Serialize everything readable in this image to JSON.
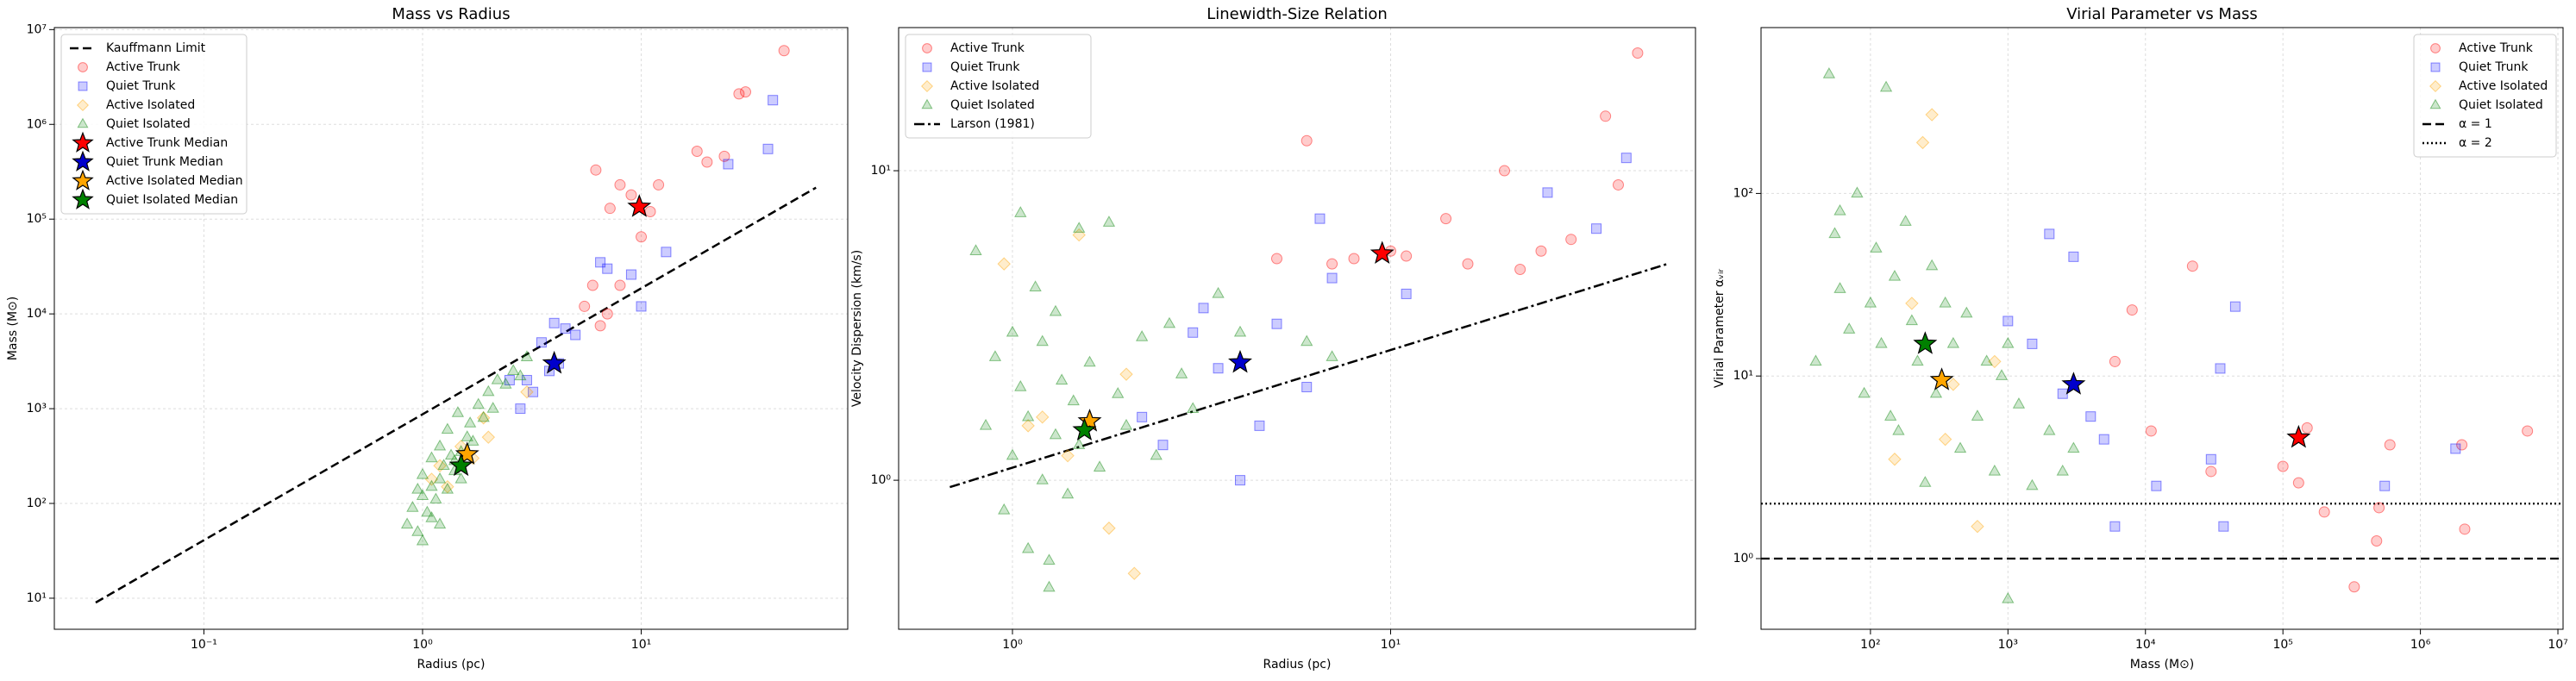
{
  "chart_data": [
    {
      "type": "scatter",
      "title": "Mass vs Radius",
      "xlabel": "Radius (pc)",
      "ylabel": "Mass (M⊙)",
      "log_x": true,
      "log_y": true,
      "grid": true,
      "legend": "upper left",
      "xlim": [
        0.0207,
        88
      ],
      "ylim": [
        4.7,
        10500000
      ],
      "xticks": [
        {
          "value": 0.1,
          "label": "10⁻¹"
        },
        {
          "value": 1,
          "label": "10⁰"
        },
        {
          "value": 10,
          "label": "10¹"
        }
      ],
      "yticks": [
        {
          "value": 10,
          "label": "10¹"
        },
        {
          "value": 100,
          "label": "10²"
        },
        {
          "value": 1000,
          "label": "10³"
        },
        {
          "value": 10000,
          "label": "10⁴"
        },
        {
          "value": 100000,
          "label": "10⁵"
        },
        {
          "value": 1000000,
          "label": "10⁶"
        },
        {
          "value": 10000000,
          "label": "10⁷"
        }
      ],
      "lines": [
        {
          "name": "Kauffmann Limit",
          "style": "dashed",
          "color": "#000000",
          "x": [
            0.032,
            63
          ],
          "y": [
            9,
            215000
          ]
        }
      ],
      "series": [
        {
          "name": "Active Trunk",
          "marker": "circle",
          "color": "#ff0000",
          "x": [
            6.2,
            7.2,
            8,
            9,
            11,
            12,
            18,
            20,
            24,
            28,
            30,
            45,
            6,
            7,
            6.5,
            5.5,
            8,
            10
          ],
          "y": [
            330000,
            130000,
            230000,
            180000,
            120000,
            230000,
            520000,
            400000,
            460000,
            2100000,
            2200000,
            6000000,
            20000,
            10000,
            7500,
            12000,
            20000,
            65000
          ]
        },
        {
          "name": "Quiet Trunk",
          "marker": "square",
          "color": "#0000ff",
          "x": [
            3,
            3.5,
            4,
            4.5,
            5,
            6.5,
            7,
            9,
            10,
            13,
            25,
            38,
            40,
            2.5,
            3.2,
            2.8,
            4.2,
            3.8
          ],
          "y": [
            2000,
            5000,
            8000,
            7000,
            6000,
            35000,
            30000,
            26000,
            12000,
            45000,
            380000,
            550000,
            1800000,
            2000,
            1500,
            1000,
            3000,
            2500
          ]
        },
        {
          "name": "Active Isolated",
          "marker": "diamond",
          "color": "#ffa500",
          "x": [
            1.5,
            1.7,
            1.2,
            2,
            1.9,
            1.3,
            3,
            1.1
          ],
          "y": [
            400,
            300,
            250,
            500,
            800,
            150,
            1500,
            180
          ]
        },
        {
          "name": "Quiet Isolated",
          "marker": "triangle",
          "color": "#008000",
          "x": [
            0.85,
            0.9,
            0.95,
            1,
            1,
            1.05,
            1.1,
            1.1,
            1.15,
            1.2,
            1.2,
            1.25,
            1.3,
            1.3,
            1.35,
            1.4,
            1.45,
            1.5,
            1.5,
            1.6,
            1.65,
            1.7,
            1.8,
            1.9,
            2,
            2.1,
            2.2,
            2.4,
            2.6,
            2.8,
            3,
            1,
            1.1,
            0.95,
            1.2,
            1.4
          ],
          "y": [
            60,
            90,
            50,
            120,
            200,
            80,
            150,
            300,
            110,
            180,
            400,
            250,
            140,
            600,
            320,
            220,
            900,
            350,
            180,
            500,
            700,
            450,
            1100,
            800,
            1500,
            1000,
            2000,
            1800,
            2500,
            2200,
            3500,
            40,
            70,
            140,
            60,
            280
          ]
        },
        {
          "name": "Active Trunk Median",
          "marker": "star",
          "color": "#ff0000",
          "x": [
            9.8
          ],
          "y": [
            135000
          ]
        },
        {
          "name": "Quiet Trunk Median",
          "marker": "star",
          "color": "#0000cc",
          "x": [
            4
          ],
          "y": [
            3000
          ]
        },
        {
          "name": "Active Isolated Median",
          "marker": "star",
          "color": "#ffa500",
          "x": [
            1.6
          ],
          "y": [
            330
          ]
        },
        {
          "name": "Quiet Isolated Median",
          "marker": "star",
          "color": "#008000",
          "x": [
            1.5
          ],
          "y": [
            250
          ]
        }
      ]
    },
    {
      "type": "scatter",
      "title": "Linewidth-Size Relation",
      "xlabel": "Radius (pc)",
      "ylabel": "Velocity Dispersion (km/s)",
      "log_x": true,
      "log_y": true,
      "grid": true,
      "legend": "upper left",
      "xlim": [
        0.5,
        64
      ],
      "ylim": [
        0.33,
        29
      ],
      "xticks": [
        {
          "value": 1,
          "label": "10⁰"
        },
        {
          "value": 10,
          "label": "10¹"
        }
      ],
      "yticks": [
        {
          "value": 1,
          "label": "10⁰"
        },
        {
          "value": 10,
          "label": "10¹"
        }
      ],
      "series": [
        {
          "name": "Active Trunk",
          "marker": "circle",
          "color": "#ff0000",
          "x": [
            45,
            37,
            20,
            14,
            6,
            10,
            11,
            7,
            8,
            30,
            25,
            16,
            5,
            40,
            22
          ],
          "y": [
            24,
            15,
            10,
            7,
            12.5,
            5.5,
            5.3,
            5,
            5.2,
            6,
            5.5,
            5,
            5.2,
            9,
            4.8
          ]
        },
        {
          "name": "Quiet Trunk",
          "marker": "square",
          "color": "#0000ff",
          "x": [
            42,
            35,
            26,
            11,
            6.5,
            7,
            5,
            4,
            3.5,
            3,
            2.5,
            2.2,
            4.5,
            6,
            3.2
          ],
          "y": [
            11,
            6.5,
            8.5,
            4,
            7,
            4.5,
            3.2,
            1,
            2.3,
            3,
            1.3,
            1.6,
            1.5,
            2,
            3.6
          ]
        },
        {
          "name": "Active Isolated",
          "marker": "diamond",
          "color": "#ffa500",
          "x": [
            0.95,
            1.5,
            1.8,
            2.1,
            1.2,
            1.4,
            2,
            1.1
          ],
          "y": [
            5,
            6.2,
            0.7,
            0.5,
            1.6,
            1.2,
            2.2,
            1.5
          ]
        },
        {
          "name": "Quiet Isolated",
          "marker": "triangle",
          "color": "#008000",
          "x": [
            0.8,
            0.85,
            0.9,
            0.95,
            1,
            1,
            1.05,
            1.1,
            1.1,
            1.15,
            1.2,
            1.2,
            1.25,
            1.3,
            1.3,
            1.35,
            1.4,
            1.45,
            1.5,
            1.5,
            1.6,
            1.7,
            1.8,
            1.9,
            2,
            2.2,
            2.4,
            2.6,
            2.8,
            3,
            3.5,
            4,
            6,
            7,
            1.05,
            1.25
          ],
          "y": [
            5.5,
            1.5,
            2.5,
            0.8,
            3,
            1.2,
            2,
            0.6,
            1.6,
            4.2,
            1,
            2.8,
            0.45,
            1.4,
            3.5,
            2.1,
            0.9,
            1.8,
            6.5,
            1.3,
            2.4,
            1.1,
            6.8,
            1.9,
            1.5,
            2.9,
            1.2,
            3.2,
            2.2,
            1.7,
            4,
            3,
            2.8,
            2.5,
            7.3,
            0.55
          ]
        },
        {
          "name": "Active Trunk Median",
          "marker": "star",
          "color": "#ff0000",
          "legend": false,
          "x": [
            9.5
          ],
          "y": [
            5.4
          ]
        },
        {
          "name": "Quiet Trunk Median",
          "marker": "star",
          "color": "#0000cc",
          "legend": false,
          "x": [
            4
          ],
          "y": [
            2.4
          ]
        },
        {
          "name": "Active Isolated Median",
          "marker": "star",
          "color": "#ffa500",
          "legend": false,
          "x": [
            1.6
          ],
          "y": [
            1.55
          ]
        },
        {
          "name": "Quiet Isolated Median",
          "marker": "star",
          "color": "#008000",
          "legend": false,
          "x": [
            1.55
          ],
          "y": [
            1.45
          ]
        }
      ],
      "lines": [
        {
          "name": "Larson (1981)",
          "style": "dashdot",
          "color": "#000000",
          "x": [
            0.683,
            54
          ],
          "y": [
            0.95,
            5.0
          ]
        }
      ]
    },
    {
      "type": "scatter",
      "title": "Virial Parameter vs Mass",
      "xlabel": "Mass (M⊙)",
      "ylabel": "Virial Parameter αᵥᵢᵣ",
      "log_x": true,
      "log_y": true,
      "grid": true,
      "legend": "upper right",
      "xlim": [
        16,
        10900000
      ],
      "ylim": [
        0.41,
        810
      ],
      "xticks": [
        {
          "value": 100,
          "label": "10²"
        },
        {
          "value": 1000,
          "label": "10³"
        },
        {
          "value": 10000,
          "label": "10⁴"
        },
        {
          "value": 100000,
          "label": "10⁵"
        },
        {
          "value": 1000000,
          "label": "10⁶"
        },
        {
          "value": 10000000,
          "label": "10⁷"
        }
      ],
      "yticks": [
        {
          "value": 1,
          "label": "10⁰"
        },
        {
          "value": 10,
          "label": "10¹"
        },
        {
          "value": 100,
          "label": "10²"
        }
      ],
      "series": [
        {
          "name": "Active Trunk",
          "marker": "circle",
          "color": "#ff0000",
          "x": [
            22000,
            8000,
            6000,
            11000,
            100000,
            130000,
            150000,
            330000,
            480000,
            200000,
            500000,
            600000,
            2100000,
            6000000,
            2000000,
            30000
          ],
          "y": [
            40,
            23,
            12,
            5,
            3.2,
            2.6,
            5.2,
            0.7,
            1.25,
            1.8,
            1.9,
            4.2,
            1.45,
            5,
            4.2,
            3
          ]
        },
        {
          "name": "Quiet Trunk",
          "marker": "square",
          "color": "#0000ff",
          "x": [
            2000,
            3000,
            45000,
            35000,
            30000,
            37000,
            12000,
            6000,
            5000,
            1800000,
            550000,
            1000,
            1500,
            2500,
            4000
          ],
          "y": [
            60,
            45,
            24,
            11,
            3.5,
            1.5,
            2.5,
            1.5,
            4.5,
            4,
            2.5,
            20,
            15,
            8,
            6
          ]
        },
        {
          "name": "Active Isolated",
          "marker": "diamond",
          "color": "#ffa500",
          "x": [
            280,
            240,
            600,
            150,
            350,
            800,
            400,
            200
          ],
          "y": [
            270,
            190,
            1.5,
            3.5,
            4.5,
            12,
            9,
            25
          ]
        },
        {
          "name": "Quiet Isolated",
          "marker": "triangle",
          "color": "#008000",
          "x": [
            40,
            50,
            55,
            60,
            70,
            80,
            90,
            100,
            110,
            120,
            130,
            150,
            160,
            180,
            200,
            220,
            250,
            280,
            300,
            350,
            400,
            450,
            500,
            600,
            700,
            800,
            900,
            1000,
            1200,
            1500,
            2000,
            2500,
            3000,
            1000,
            60,
            140
          ],
          "y": [
            12,
            450,
            60,
            30,
            18,
            100,
            8,
            25,
            50,
            15,
            380,
            35,
            5,
            70,
            20,
            12,
            2.6,
            40,
            8,
            25,
            15,
            4,
            22,
            6,
            12,
            3,
            10,
            0.6,
            7,
            2.5,
            5,
            3,
            4,
            15,
            80,
            6
          ]
        },
        {
          "name": "Active Trunk Median",
          "marker": "star",
          "color": "#ff0000",
          "legend": false,
          "x": [
            130000
          ],
          "y": [
            4.6
          ]
        },
        {
          "name": "Quiet Trunk Median",
          "marker": "star",
          "color": "#0000cc",
          "legend": false,
          "x": [
            3000
          ],
          "y": [
            9
          ]
        },
        {
          "name": "Active Isolated Median",
          "marker": "star",
          "color": "#ffa500",
          "legend": false,
          "x": [
            330
          ],
          "y": [
            9.5
          ]
        },
        {
          "name": "Quiet Isolated Median",
          "marker": "star",
          "color": "#008000",
          "legend": false,
          "x": [
            250
          ],
          "y": [
            15
          ]
        }
      ],
      "hlines": [
        {
          "name": "α = 1",
          "value": 1,
          "style": "dashed",
          "color": "#000000"
        },
        {
          "name": "α = 2",
          "value": 2,
          "style": "dotted",
          "color": "#000000"
        }
      ]
    }
  ]
}
